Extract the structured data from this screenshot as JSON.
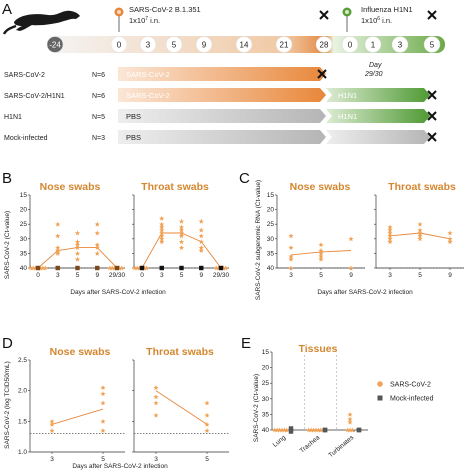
{
  "panel_a": {
    "letter": "A",
    "inoculation_sars": {
      "line1": "SARS-CoV-2 B.1.351",
      "line2": "1x10",
      "sup": "7",
      "line3": " i.n."
    },
    "inoculation_flu": {
      "line1": "Influenza H1N1",
      "line2": "1x10",
      "sup": "6",
      "line3": " i.n."
    },
    "timeline_days": [
      "-24",
      "0",
      "3",
      "5",
      "9",
      "14",
      "21",
      "28",
      "0",
      "1",
      "3",
      "5"
    ],
    "day_note": {
      "line1": "Day",
      "line2": "29/30"
    },
    "groups": [
      {
        "name": "SARS-CoV-2",
        "n": "N=6",
        "bar1": "SARS-CoV-2",
        "bar2": ""
      },
      {
        "name": "SARS-CoV-2/H1N1",
        "n": "N=6",
        "bar1": "SARS-CoV-2",
        "bar2": "H1N1"
      },
      {
        "name": "H1N1",
        "n": "N=5",
        "bar1": "PBS",
        "bar2": "H1N1"
      },
      {
        "name": "Mock-infected",
        "n": "N=3",
        "bar1": "PBS",
        "bar2": ""
      }
    ],
    "colors": {
      "orange": "#e8873a",
      "green": "#5a9e3a",
      "gray": "#b8b8b8",
      "cross": "#111111"
    }
  },
  "panel_b": {
    "letter": "B",
    "titles": [
      "Nose swabs",
      "Throat swabs"
    ],
    "ylabel": "SARS-CoV-2 (Ct-value)",
    "xlabel": "Days after SARS-CoV-2 infection",
    "yticks": [
      "15",
      "20",
      "25",
      "30",
      "35",
      "40"
    ],
    "xticks": [
      "0",
      "3",
      "5",
      "9",
      "29/30"
    ]
  },
  "panel_c": {
    "letter": "C",
    "titles": [
      "Nose swabs",
      "Throat swabs"
    ],
    "ylabel": "SARS-CoV-2 subgenomic RNA (Ct-value)",
    "xlabel": "Days after SARS-CoV-2 infection",
    "yticks": [
      "15",
      "20",
      "25",
      "30",
      "35",
      "40"
    ],
    "xticks": [
      "3",
      "5",
      "9"
    ]
  },
  "panel_d": {
    "letter": "D",
    "titles": [
      "Nose swabs",
      "Throat swabs"
    ],
    "ylabel": "SARS-CoV-2 (log TCID50/mL)",
    "xlabel": "Days after SARS-CoV-2 infection",
    "yticks": [
      "1.0",
      "1.5",
      "2.0",
      "2.5"
    ],
    "xticks": [
      "3",
      "5"
    ]
  },
  "panel_e": {
    "letter": "E",
    "title": "Tissues",
    "ylabel": "SARS-CoV-2 (Ct-value)",
    "yticks": [
      "15",
      "20",
      "25",
      "30",
      "35",
      "40"
    ],
    "categories": [
      "Lung",
      "Trachea",
      "Turbinates"
    ],
    "legend": [
      "SARS-CoV-2",
      "Mock-infected"
    ]
  },
  "chart_data": [
    {
      "type": "scatter",
      "panel": "B-nose",
      "title": "Nose swabs",
      "ylabel": "SARS-CoV-2 (Ct-value)",
      "xlabel": "Days after SARS-CoV-2 infection",
      "ylim": [
        15,
        40
      ],
      "y_inverted": true,
      "lod": 40,
      "categories": [
        "0",
        "3",
        "5",
        "9",
        "29/30"
      ],
      "series": [
        {
          "name": "SARS-CoV-2",
          "points": [
            [
              0,
              40
            ],
            [
              0,
              40
            ],
            [
              0,
              40
            ],
            [
              0,
              40
            ],
            [
              0,
              40
            ],
            [
              0,
              40
            ],
            [
              0,
              40
            ],
            [
              1,
              25
            ],
            [
              1,
              29
            ],
            [
              1,
              33
            ],
            [
              1,
              34
            ],
            [
              1,
              34.5
            ],
            [
              1,
              35
            ],
            [
              1,
              40
            ],
            [
              2,
              28
            ],
            [
              2,
              31
            ],
            [
              2,
              32
            ],
            [
              2,
              33
            ],
            [
              2,
              35
            ],
            [
              2,
              37
            ],
            [
              3,
              25
            ],
            [
              3,
              28
            ],
            [
              3,
              32
            ],
            [
              3,
              33
            ],
            [
              3,
              35
            ],
            [
              3,
              40
            ],
            [
              4,
              40
            ],
            [
              4,
              40
            ],
            [
              4,
              40
            ],
            [
              4,
              40
            ],
            [
              4,
              40
            ],
            [
              4,
              40
            ]
          ],
          "mean": [
            40,
            34,
            33,
            33,
            40
          ]
        },
        {
          "name": "Mock-infected",
          "points": [
            [
              0,
              40
            ],
            [
              1,
              40
            ],
            [
              2,
              40
            ],
            [
              3,
              40
            ],
            [
              4,
              40
            ]
          ]
        }
      ]
    },
    {
      "type": "scatter",
      "panel": "B-throat",
      "title": "Throat swabs",
      "ylim": [
        15,
        40
      ],
      "y_inverted": true,
      "lod": 40,
      "categories": [
        "0",
        "3",
        "5",
        "9",
        "29/30"
      ],
      "series": [
        {
          "name": "SARS-CoV-2",
          "points": [
            [
              0,
              40
            ],
            [
              0,
              40
            ],
            [
              0,
              40
            ],
            [
              0,
              40
            ],
            [
              0,
              40
            ],
            [
              0,
              40
            ],
            [
              1,
              23
            ],
            [
              1,
              25
            ],
            [
              1,
              26
            ],
            [
              1,
              27
            ],
            [
              1,
              28
            ],
            [
              1,
              29
            ],
            [
              1,
              30
            ],
            [
              1,
              31
            ],
            [
              2,
              24
            ],
            [
              2,
              26
            ],
            [
              2,
              27
            ],
            [
              2,
              28
            ],
            [
              2,
              29
            ],
            [
              2,
              31
            ],
            [
              2,
              33
            ],
            [
              3,
              24
            ],
            [
              3,
              27
            ],
            [
              3,
              29
            ],
            [
              3,
              31
            ],
            [
              3,
              33
            ],
            [
              3,
              34
            ],
            [
              4,
              40
            ],
            [
              4,
              40
            ],
            [
              4,
              40
            ],
            [
              4,
              40
            ],
            [
              4,
              40
            ]
          ],
          "mean": [
            40,
            28,
            28,
            31,
            40
          ]
        },
        {
          "name": "Mock-infected",
          "points": [
            [
              0,
              40
            ],
            [
              1,
              40
            ],
            [
              2,
              40
            ],
            [
              3,
              40
            ],
            [
              4,
              40
            ]
          ]
        }
      ]
    },
    {
      "type": "scatter",
      "panel": "C-nose",
      "title": "Nose swabs",
      "ylabel": "SARS-CoV-2 subgenomic RNA (Ct-value)",
      "xlabel": "Days after SARS-CoV-2 infection",
      "ylim": [
        15,
        40
      ],
      "y_inverted": true,
      "lod": 40,
      "categories": [
        "3",
        "5",
        "9"
      ],
      "series": [
        {
          "name": "SARS-CoV-2",
          "points": [
            [
              0,
              29
            ],
            [
              0,
              33
            ],
            [
              0,
              36
            ],
            [
              0,
              37
            ],
            [
              0,
              40
            ],
            [
              1,
              32
            ],
            [
              1,
              34
            ],
            [
              1,
              35
            ],
            [
              1,
              36
            ],
            [
              1,
              37
            ],
            [
              2,
              30
            ],
            [
              2,
              40
            ]
          ],
          "mean": [
            35.5,
            34.5,
            34
          ]
        }
      ]
    },
    {
      "type": "scatter",
      "panel": "C-throat",
      "title": "Throat swabs",
      "ylim": [
        15,
        40
      ],
      "y_inverted": true,
      "lod": 40,
      "categories": [
        "3",
        "5",
        "9"
      ],
      "series": [
        {
          "name": "SARS-CoV-2",
          "points": [
            [
              0,
              26
            ],
            [
              0,
              27
            ],
            [
              0,
              28
            ],
            [
              0,
              29
            ],
            [
              0,
              30
            ],
            [
              0,
              31
            ],
            [
              1,
              25
            ],
            [
              1,
              27
            ],
            [
              1,
              28
            ],
            [
              1,
              29
            ],
            [
              1,
              30
            ],
            [
              2,
              28
            ],
            [
              2,
              30
            ],
            [
              2,
              31
            ]
          ],
          "mean": [
            29,
            28,
            30
          ]
        }
      ]
    },
    {
      "type": "scatter",
      "panel": "D-nose",
      "title": "Nose swabs",
      "ylabel": "SARS-CoV-2 (log TCID50/mL)",
      "xlabel": "Days after SARS-CoV-2 infection",
      "ylim": [
        1.0,
        2.5
      ],
      "lod": 1.3,
      "categories": [
        "3",
        "5"
      ],
      "series": [
        {
          "name": "SARS-CoV-2",
          "points": [
            [
              0,
              1.35
            ],
            [
              0,
              1.45
            ],
            [
              0,
              1.5
            ],
            [
              1,
              1.35
            ],
            [
              1,
              1.5
            ],
            [
              1,
              1.8
            ],
            [
              1,
              1.95
            ],
            [
              1,
              2.05
            ]
          ],
          "mean": [
            1.45,
            1.7
          ]
        }
      ]
    },
    {
      "type": "scatter",
      "panel": "D-throat",
      "title": "Throat swabs",
      "ylim": [
        1.0,
        2.5
      ],
      "lod": 1.3,
      "categories": [
        "3",
        "5"
      ],
      "series": [
        {
          "name": "SARS-CoV-2",
          "points": [
            [
              0,
              1.6
            ],
            [
              0,
              1.8
            ],
            [
              0,
              1.9
            ],
            [
              0,
              2.05
            ],
            [
              1,
              1.35
            ],
            [
              1,
              1.45
            ],
            [
              1,
              1.6
            ],
            [
              1,
              1.8
            ]
          ],
          "mean": [
            2.0,
            1.45
          ]
        }
      ]
    },
    {
      "type": "scatter",
      "panel": "E",
      "title": "Tissues",
      "ylabel": "SARS-CoV-2 (Ct-value)",
      "ylim": [
        15,
        40
      ],
      "y_inverted": true,
      "categories": [
        "Lung",
        "Trachea",
        "Turbinates"
      ],
      "series": [
        {
          "name": "SARS-CoV-2",
          "points": [
            [
              0,
              40
            ],
            [
              0,
              40
            ],
            [
              0,
              40
            ],
            [
              0,
              40
            ],
            [
              0,
              40
            ],
            [
              0,
              40
            ],
            [
              1,
              40
            ],
            [
              1,
              40
            ],
            [
              1,
              40
            ],
            [
              1,
              40
            ],
            [
              1,
              40
            ],
            [
              1,
              40
            ],
            [
              2,
              35
            ],
            [
              2,
              36.5
            ],
            [
              2,
              37.5
            ],
            [
              2,
              40
            ],
            [
              2,
              40
            ],
            [
              2,
              40
            ]
          ]
        },
        {
          "name": "Mock-infected",
          "points": [
            [
              0,
              39.5
            ],
            [
              0,
              40
            ],
            [
              0,
              40.5
            ],
            [
              1,
              40
            ],
            [
              1,
              40
            ],
            [
              1,
              40
            ],
            [
              2,
              40
            ],
            [
              2,
              40
            ],
            [
              2,
              40
            ]
          ]
        }
      ]
    }
  ]
}
